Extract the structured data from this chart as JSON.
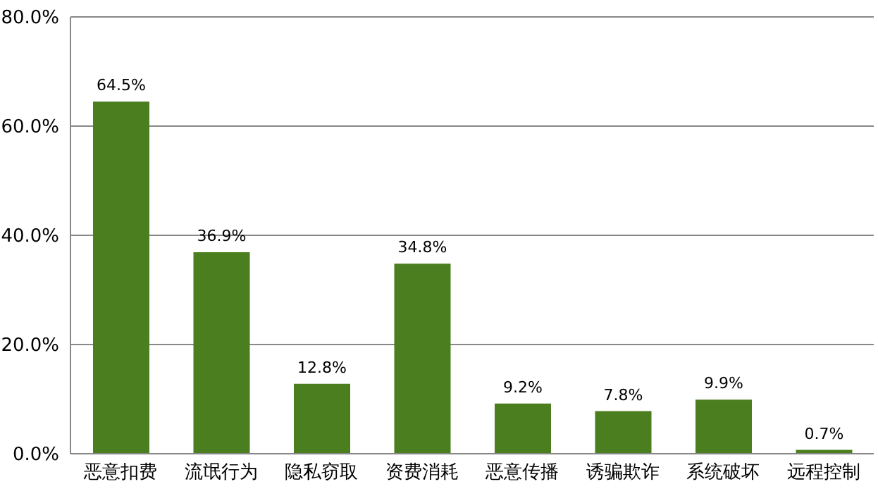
{
  "chart_data": {
    "type": "bar",
    "categories": [
      "恶意扣费",
      "流氓行为",
      "隐私窃取",
      "资费消耗",
      "恶意传播",
      "诱骗欺诈",
      "系统破坏",
      "远程控制"
    ],
    "values": [
      64.5,
      36.9,
      12.8,
      34.8,
      9.2,
      7.8,
      9.9,
      0.7
    ],
    "value_labels": [
      "64.5%",
      "36.9%",
      "12.8%",
      "34.8%",
      "9.2%",
      "7.8%",
      "9.9%",
      "0.7%"
    ],
    "color": "#4a7e1e",
    "ylim": [
      0,
      80
    ],
    "yticks": [
      {
        "value": 0,
        "label": "0.0%"
      },
      {
        "value": 20,
        "label": "20.0%"
      },
      {
        "value": 40,
        "label": "40.0%"
      },
      {
        "value": 60,
        "label": "60.0%"
      },
      {
        "value": 80,
        "label": "80.0%"
      }
    ],
    "grid": "y",
    "legend": false
  }
}
